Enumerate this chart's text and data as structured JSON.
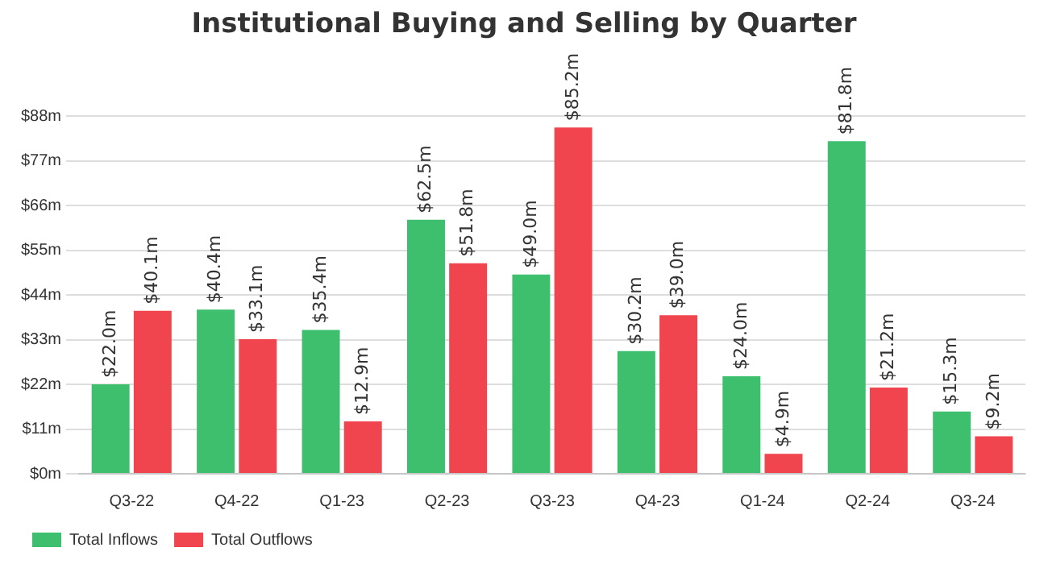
{
  "chart_data": {
    "type": "bar",
    "title": "Institutional Buying and Selling by Quarter",
    "categories": [
      "Q3-22",
      "Q4-22",
      "Q1-23",
      "Q2-23",
      "Q3-23",
      "Q4-23",
      "Q1-24",
      "Q2-24",
      "Q3-24"
    ],
    "series": [
      {
        "name": "Total Inflows",
        "color": "#3dbf6e",
        "values": [
          22.0,
          40.4,
          35.4,
          62.5,
          49.0,
          30.2,
          24.0,
          81.8,
          15.3
        ],
        "value_labels": [
          "$22.0m",
          "$40.4m",
          "$35.4m",
          "$62.5m",
          "$49.0m",
          "$30.2m",
          "$24.0m",
          "$81.8m",
          "$15.3m"
        ]
      },
      {
        "name": "Total Outflows",
        "color": "#f0454e",
        "values": [
          40.1,
          33.1,
          12.9,
          51.8,
          85.2,
          39.0,
          4.9,
          21.2,
          9.2
        ],
        "value_labels": [
          "$40.1m",
          "$33.1m",
          "$12.9m",
          "$51.8m",
          "$85.2m",
          "$39.0m",
          "$4.9m",
          "$21.2m",
          "$9.2m"
        ]
      }
    ],
    "ylim": [
      0,
      88
    ],
    "yticks": [
      {
        "value": 0,
        "label": "$0m"
      },
      {
        "value": 11,
        "label": "$11m"
      },
      {
        "value": 22,
        "label": "$22m"
      },
      {
        "value": 33,
        "label": "$33m"
      },
      {
        "value": 44,
        "label": "$44m"
      },
      {
        "value": 55,
        "label": "$55m"
      },
      {
        "value": 66,
        "label": "$66m"
      },
      {
        "value": 77,
        "label": "$77m"
      },
      {
        "value": 88,
        "label": "$88m"
      }
    ],
    "grid": "y",
    "legend": "bottom left"
  }
}
